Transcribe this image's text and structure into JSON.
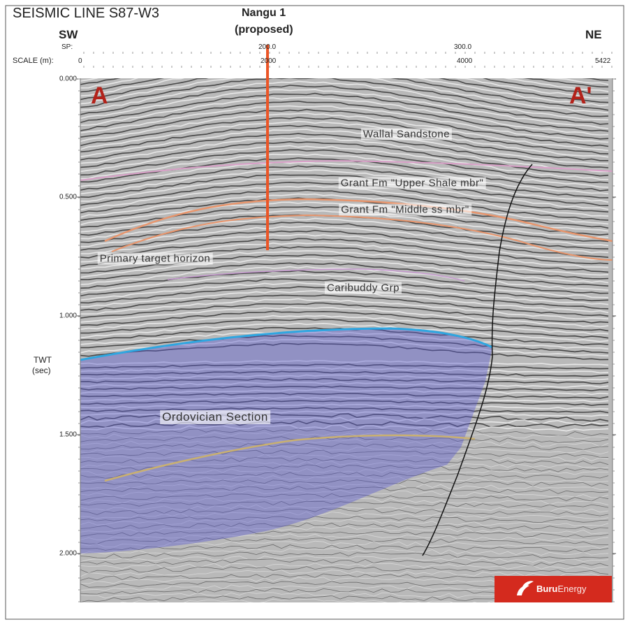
{
  "header": {
    "title": "SEISMIC LINE S87-W3",
    "left_end": "SW",
    "right_end": "NE",
    "well": {
      "name": "Nangu 1",
      "note": "(proposed)"
    }
  },
  "top_axes": {
    "sp_label": "SP:",
    "sp_ticks": [
      "200.0",
      "300.0"
    ],
    "scale_label": "SCALE (m):",
    "scale_ticks": [
      "0",
      "2000",
      "4000",
      "5422"
    ]
  },
  "left_axis": {
    "ticks": [
      "0.000",
      "0.500",
      "1.000",
      "1.500",
      "2.000"
    ],
    "label": [
      "TWT",
      "(sec)"
    ]
  },
  "section": {
    "ends": [
      "A",
      "A'"
    ],
    "labels": [
      "Wallal Sandstone",
      "Grant Fm \"Upper Shale mbr\"",
      "Grant Fm \"Middle ss mbr\"",
      "Primary target horizon",
      "Caribuddy Grp",
      "Ordovician Section"
    ]
  },
  "logo": {
    "name": "Buru",
    "suffix": "Energy"
  }
}
